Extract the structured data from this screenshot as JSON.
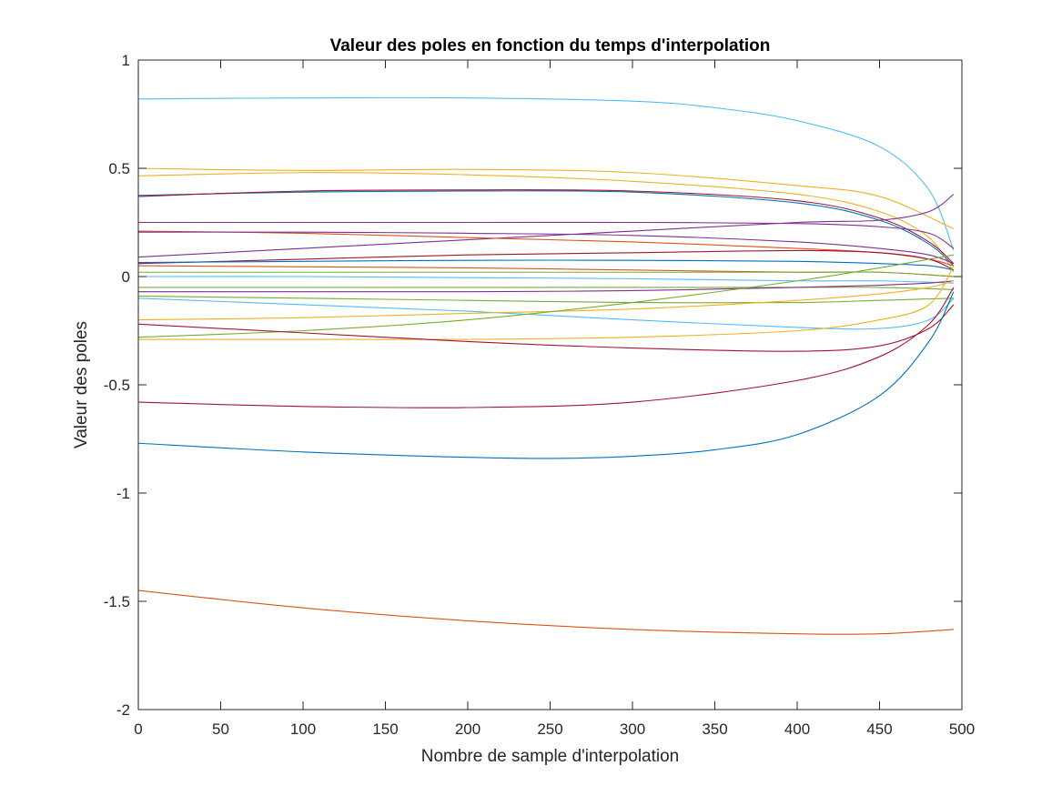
{
  "chart_data": {
    "type": "line",
    "title": "Valeur des poles en fonction du temps d'interpolation",
    "xlabel": "Nombre de sample d'interpolation",
    "ylabel": "Valeur des poles",
    "xlim": [
      0,
      500
    ],
    "ylim": [
      -2,
      1
    ],
    "xticks": [
      0,
      50,
      100,
      150,
      200,
      250,
      300,
      350,
      400,
      450,
      500
    ],
    "yticks": [
      -2,
      -1.5,
      -1,
      -0.5,
      0,
      0.5,
      1
    ],
    "xtick_labels": [
      "0",
      "50",
      "100",
      "150",
      "200",
      "250",
      "300",
      "350",
      "400",
      "450",
      "500"
    ],
    "ytick_labels": [
      "-2",
      "-1.5",
      "-1",
      "-0.5",
      "0",
      "0.5",
      "1"
    ],
    "grid": false,
    "legend": false,
    "series": [
      {
        "color": "#0072BD",
        "x": [
          0,
          100,
          200,
          300,
          400,
          495
        ],
        "y": [
          1.0,
          1.0,
          1.0,
          1.0,
          1.0,
          1.0
        ]
      },
      {
        "color": "#4DBEEE",
        "x": [
          0,
          100,
          200,
          300,
          350,
          400,
          450,
          480,
          495
        ],
        "y": [
          0.82,
          0.825,
          0.825,
          0.81,
          0.78,
          0.72,
          0.6,
          0.4,
          0.12
        ]
      },
      {
        "color": "#EDB120",
        "x": [
          0,
          100,
          200,
          300,
          400,
          450,
          495
        ],
        "y": [
          0.5,
          0.49,
          0.495,
          0.48,
          0.42,
          0.37,
          0.22
        ]
      },
      {
        "color": "#EDB120",
        "x": [
          0,
          100,
          200,
          300,
          400,
          450,
          480,
          495
        ],
        "y": [
          0.465,
          0.48,
          0.47,
          0.44,
          0.38,
          0.3,
          0.18,
          0.02
        ]
      },
      {
        "color": "#0072BD",
        "x": [
          0,
          100,
          200,
          300,
          400,
          450,
          480,
          495
        ],
        "y": [
          0.375,
          0.39,
          0.395,
          0.39,
          0.34,
          0.26,
          0.15,
          0.05
        ]
      },
      {
        "color": "#A2142F",
        "x": [
          0,
          100,
          200,
          300,
          400,
          450,
          480,
          495
        ],
        "y": [
          0.37,
          0.395,
          0.4,
          0.395,
          0.35,
          0.27,
          0.16,
          0.06
        ]
      },
      {
        "color": "#7E2F8E",
        "x": [
          0,
          100,
          200,
          300,
          400,
          450,
          480,
          495
        ],
        "y": [
          0.25,
          0.25,
          0.25,
          0.25,
          0.245,
          0.23,
          0.2,
          0.13
        ]
      },
      {
        "color": "#7E2F8E",
        "x": [
          0,
          100,
          200,
          300,
          400,
          450,
          480,
          495
        ],
        "y": [
          0.09,
          0.13,
          0.17,
          0.21,
          0.25,
          0.26,
          0.3,
          0.38
        ]
      },
      {
        "color": "#D95319",
        "x": [
          0,
          100,
          200,
          300,
          400,
          450,
          480,
          495
        ],
        "y": [
          0.21,
          0.2,
          0.18,
          0.16,
          0.13,
          0.11,
          0.08,
          0.05
        ]
      },
      {
        "color": "#7E2F8E",
        "x": [
          0,
          100,
          200,
          300,
          400,
          450,
          480,
          495
        ],
        "y": [
          0.205,
          0.205,
          0.2,
          0.19,
          0.16,
          0.13,
          0.1,
          0.06
        ]
      },
      {
        "color": "#A2142F",
        "x": [
          0,
          100,
          200,
          300,
          400,
          450,
          480,
          495
        ],
        "y": [
          0.06,
          0.08,
          0.1,
          0.11,
          0.12,
          0.11,
          0.08,
          0.03
        ]
      },
      {
        "color": "#0072BD",
        "x": [
          0,
          100,
          200,
          300,
          400,
          450,
          480,
          495
        ],
        "y": [
          0.065,
          0.07,
          0.075,
          0.075,
          0.07,
          0.06,
          0.05,
          0.03
        ]
      },
      {
        "color": "#D95319",
        "x": [
          0,
          100,
          200,
          300,
          400,
          450,
          495
        ],
        "y": [
          0.05,
          0.045,
          0.04,
          0.03,
          0.02,
          0.02,
          0.0
        ]
      },
      {
        "color": "#77AC30",
        "x": [
          0,
          100,
          200,
          300,
          400,
          450,
          495
        ],
        "y": [
          0.02,
          0.02,
          0.02,
          0.02,
          0.02,
          0.02,
          0.0
        ]
      },
      {
        "color": "#4DBEEE",
        "x": [
          0,
          100,
          200,
          300,
          400,
          450,
          495
        ],
        "y": [
          0.0,
          0.0,
          -0.005,
          -0.01,
          -0.02,
          -0.02,
          -0.03
        ]
      },
      {
        "color": "#77AC30",
        "x": [
          0,
          100,
          200,
          300,
          400,
          450,
          495
        ],
        "y": [
          -0.05,
          -0.05,
          -0.05,
          -0.05,
          -0.05,
          -0.05,
          -0.06
        ]
      },
      {
        "color": "#7E2F8E",
        "x": [
          0,
          100,
          200,
          300,
          400,
          450,
          480,
          495
        ],
        "y": [
          -0.07,
          -0.07,
          -0.07,
          -0.065,
          -0.05,
          -0.04,
          -0.03,
          -0.02
        ]
      },
      {
        "color": "#4DBEEE",
        "x": [
          0,
          100,
          200,
          300,
          400,
          450,
          480,
          495
        ],
        "y": [
          -0.1,
          -0.13,
          -0.16,
          -0.2,
          -0.235,
          -0.24,
          -0.2,
          -0.1
        ]
      },
      {
        "color": "#77AC30",
        "x": [
          0,
          100,
          200,
          300,
          400,
          450,
          495
        ],
        "y": [
          -0.09,
          -0.1,
          -0.11,
          -0.12,
          -0.12,
          -0.11,
          -0.1
        ]
      },
      {
        "color": "#EDB120",
        "x": [
          0,
          100,
          200,
          300,
          400,
          450,
          480,
          495
        ],
        "y": [
          -0.2,
          -0.19,
          -0.17,
          -0.15,
          -0.11,
          -0.08,
          -0.05,
          -0.02
        ]
      },
      {
        "color": "#77AC30",
        "x": [
          0,
          100,
          200,
          300,
          400,
          450,
          480,
          495
        ],
        "y": [
          -0.28,
          -0.25,
          -0.2,
          -0.12,
          -0.02,
          0.04,
          0.08,
          0.1
        ]
      },
      {
        "color": "#EDB120",
        "x": [
          0,
          100,
          200,
          300,
          400,
          450,
          480,
          495
        ],
        "y": [
          -0.29,
          -0.29,
          -0.29,
          -0.28,
          -0.25,
          -0.2,
          -0.13,
          0.05
        ]
      },
      {
        "color": "#A2142F",
        "x": [
          0,
          100,
          200,
          300,
          400,
          450,
          480,
          495
        ],
        "y": [
          -0.22,
          -0.26,
          -0.3,
          -0.33,
          -0.345,
          -0.32,
          -0.24,
          -0.13
        ]
      },
      {
        "color": "#A2142F",
        "x": [
          0,
          100,
          200,
          300,
          400,
          450,
          480,
          495
        ],
        "y": [
          -0.58,
          -0.6,
          -0.605,
          -0.58,
          -0.48,
          -0.37,
          -0.22,
          -0.05
        ]
      },
      {
        "color": "#0072BD",
        "x": [
          0,
          100,
          200,
          250,
          300,
          350,
          400,
          450,
          480,
          495
        ],
        "y": [
          -0.77,
          -0.81,
          -0.835,
          -0.84,
          -0.83,
          -0.8,
          -0.73,
          -0.55,
          -0.3,
          -0.07
        ]
      },
      {
        "color": "#D95319",
        "x": [
          0,
          100,
          200,
          300,
          400,
          450,
          495
        ],
        "y": [
          -1.45,
          -1.53,
          -1.59,
          -1.63,
          -1.65,
          -1.65,
          -1.63
        ]
      }
    ]
  }
}
